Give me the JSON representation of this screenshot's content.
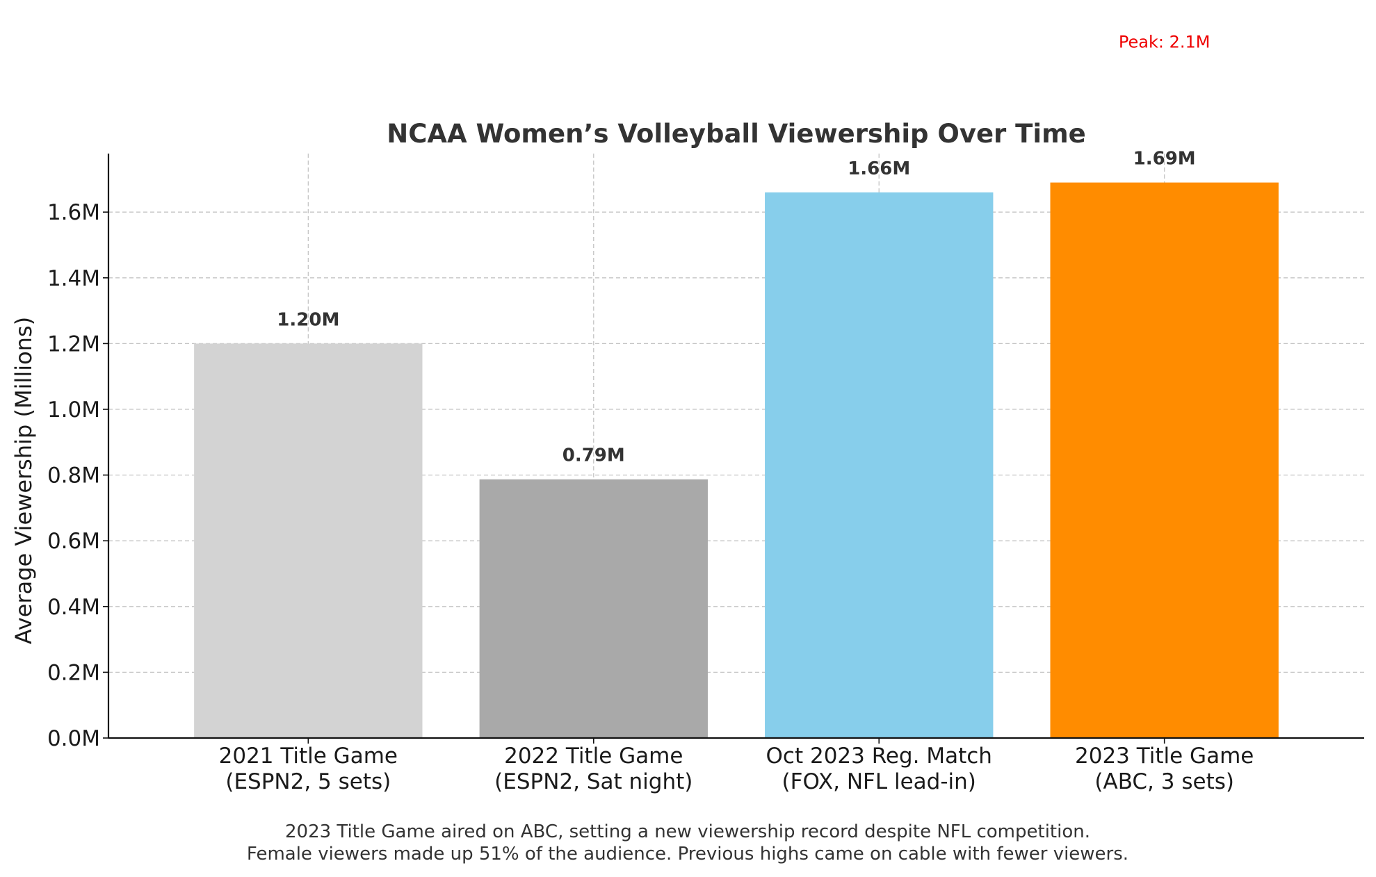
{
  "chart_data": {
    "type": "bar",
    "title": "NCAA Women’s Volleyball Viewership Over Time",
    "xlabel": "",
    "ylabel": "Average Viewership (Millions)",
    "ylim": [
      0,
      1.778
    ],
    "yticks": [
      0.0,
      0.2,
      0.4,
      0.6,
      0.8,
      1.0,
      1.2,
      1.4,
      1.6
    ],
    "ytick_labels": [
      "0.0M",
      "0.2M",
      "0.4M",
      "0.6M",
      "0.8M",
      "1.0M",
      "1.2M",
      "1.4M",
      "1.6M"
    ],
    "grid": true,
    "categories": [
      [
        "2021 Title Game",
        "(ESPN2, 5 sets)"
      ],
      [
        "2022 Title Game",
        "(ESPN2, Sat night)"
      ],
      [
        "Oct 2023 Reg. Match",
        "(FOX, NFL lead-in)"
      ],
      [
        "2023 Title Game",
        "(ABC, 3 sets)"
      ]
    ],
    "values": [
      1.2,
      0.787,
      1.66,
      1.69
    ],
    "value_labels": [
      "1.20M",
      "0.79M",
      "1.66M",
      "1.69M"
    ],
    "colors": [
      "#d3d3d3",
      "#a9a9a9",
      "#87ceeb",
      "#ff8c00"
    ],
    "annotation": {
      "text": "Peak: 2.1M",
      "color": "#ee0000",
      "category_index": 3,
      "value": 2.1
    },
    "caption": [
      "2023 Title Game aired on ABC, setting a new viewership record despite NFL competition.",
      "Female viewers made up 51% of the audience. Previous highs came on cable with fewer viewers."
    ]
  }
}
